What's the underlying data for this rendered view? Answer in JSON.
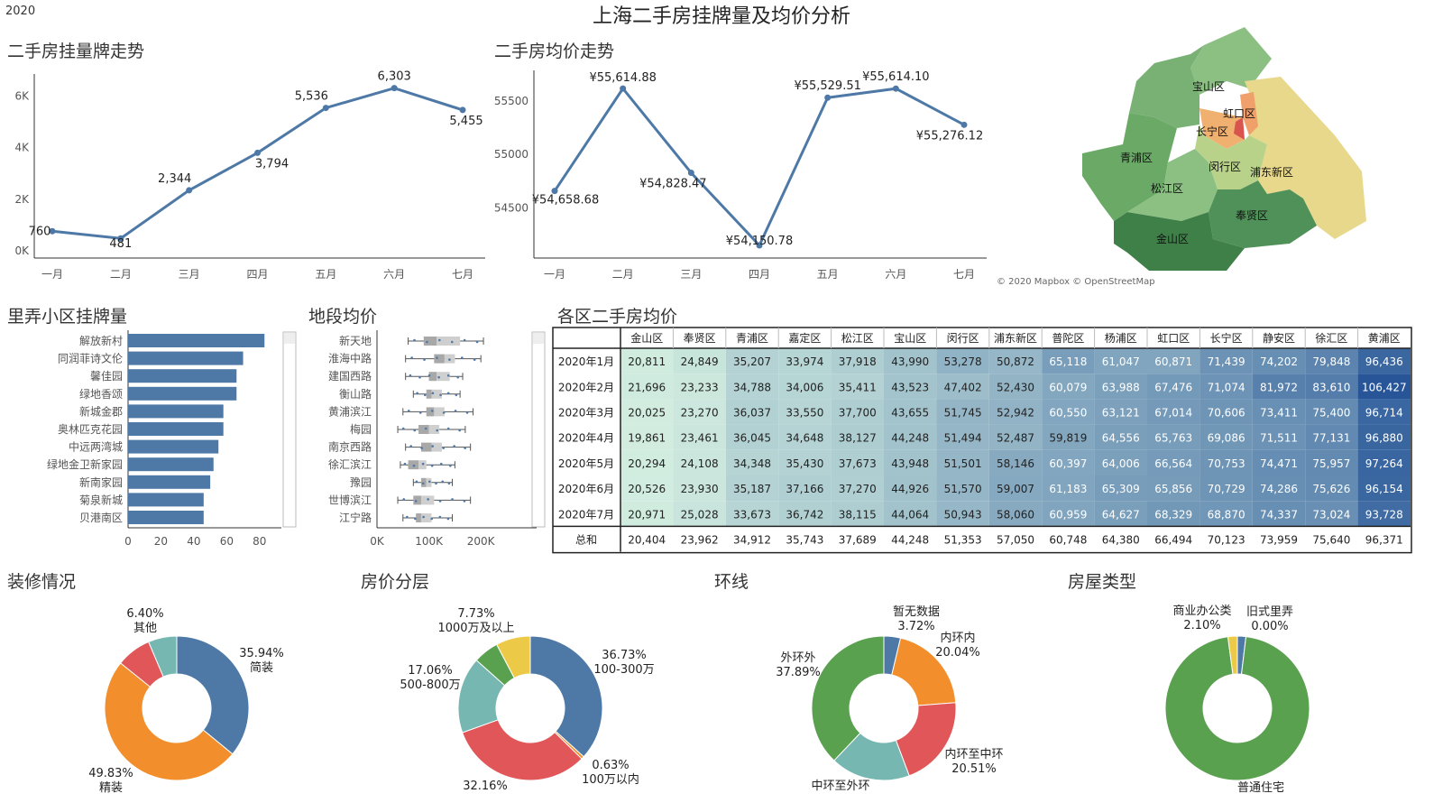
{
  "header": {
    "year": "2020",
    "title": "上海二手房挂牌量及均价分析"
  },
  "listing_trend": {
    "title": "二手房挂量牌走势",
    "chart_data": {
      "type": "line",
      "categories": [
        "一月",
        "二月",
        "三月",
        "四月",
        "五月",
        "六月",
        "七月"
      ],
      "values": [
        760,
        481,
        2344,
        3794,
        5536,
        6303,
        5455
      ],
      "labels": [
        "760",
        "481",
        "2,344",
        "3,794",
        "5,536",
        "6,303",
        "5,455"
      ],
      "yticks": [
        "0K",
        "2K",
        "4K",
        "6K"
      ],
      "ylim": [
        0,
        6500
      ]
    }
  },
  "price_trend": {
    "title": "二手房均价走势",
    "chart_data": {
      "type": "line",
      "categories": [
        "一月",
        "二月",
        "三月",
        "四月",
        "五月",
        "六月",
        "七月"
      ],
      "values": [
        54658.68,
        55614.88,
        54828.47,
        54150.78,
        55529.51,
        55614.1,
        55276.12
      ],
      "labels": [
        "¥54,658.68",
        "¥55,614.88",
        "¥54,828.47",
        "¥54,150.78",
        "¥55,529.51",
        "¥55,614.10",
        "¥55,276.12"
      ],
      "yticks": [
        "54500",
        "55000",
        "55500"
      ],
      "ylim": [
        54100,
        55700
      ]
    }
  },
  "map": {
    "credit": "© 2020 Mapbox © OpenStreetMap",
    "districts": [
      "宝山区",
      "虹口区",
      "长宁区",
      "青浦区",
      "闵行区",
      "浦东新区",
      "松江区",
      "奉贤区",
      "金山区"
    ]
  },
  "lane_listing": {
    "title": "里弄小区挂牌量",
    "chart_data": {
      "type": "bar",
      "categories": [
        "解放新村",
        "同润菲诗文伦",
        "馨佳园",
        "绿地香颂",
        "新城金郡",
        "奥林匹克花园",
        "中远两湾城",
        "绿地金卫新家园",
        "新南家园",
        "菊泉新城",
        "贝港南区"
      ],
      "values": [
        83,
        70,
        66,
        66,
        58,
        58,
        55,
        52,
        50,
        46,
        46
      ],
      "xticks": [
        "0",
        "20",
        "40",
        "60",
        "80"
      ],
      "xlim": [
        0,
        90
      ]
    }
  },
  "segment_price": {
    "title": "地段均价",
    "chart_data": {
      "type": "box",
      "categories": [
        "新天地",
        "淮海中路",
        "建国西路",
        "衡山路",
        "黄浦滨江",
        "梅园",
        "南京西路",
        "徐汇滨江",
        "豫园",
        "世博滨江",
        "江宁路"
      ],
      "xticks": [
        "0K",
        "100K",
        "200K"
      ],
      "xlim": [
        0,
        290000
      ]
    }
  },
  "district_table": {
    "title": "各区二手房均价",
    "columns": [
      "金山区",
      "奉贤区",
      "青浦区",
      "嘉定区",
      "松江区",
      "宝山区",
      "闵行区",
      "浦东新区",
      "普陀区",
      "杨浦区",
      "虹口区",
      "长宁区",
      "静安区",
      "徐汇区",
      "黄浦区"
    ],
    "rows": [
      {
        "label": "2020年1月",
        "cells": [
          "20,811",
          "24,849",
          "35,207",
          "33,974",
          "37,918",
          "43,990",
          "53,278",
          "50,872",
          "65,118",
          "61,047",
          "60,871",
          "71,439",
          "74,202",
          "79,848",
          "96,436"
        ]
      },
      {
        "label": "2020年2月",
        "cells": [
          "21,696",
          "23,233",
          "34,788",
          "34,006",
          "35,411",
          "43,523",
          "47,402",
          "52,430",
          "60,079",
          "63,988",
          "67,476",
          "71,074",
          "81,972",
          "83,610",
          "106,427"
        ]
      },
      {
        "label": "2020年3月",
        "cells": [
          "20,025",
          "23,270",
          "36,037",
          "33,550",
          "37,700",
          "43,655",
          "51,745",
          "52,942",
          "60,550",
          "63,121",
          "67,014",
          "70,606",
          "73,411",
          "75,400",
          "96,714"
        ]
      },
      {
        "label": "2020年4月",
        "cells": [
          "19,861",
          "23,461",
          "36,045",
          "34,648",
          "38,127",
          "44,248",
          "51,494",
          "52,487",
          "59,819",
          "64,556",
          "65,763",
          "69,086",
          "71,511",
          "77,131",
          "96,880"
        ]
      },
      {
        "label": "2020年5月",
        "cells": [
          "20,294",
          "24,108",
          "34,348",
          "35,430",
          "37,673",
          "43,948",
          "51,501",
          "58,146",
          "60,397",
          "64,006",
          "66,564",
          "70,753",
          "74,471",
          "75,957",
          "97,264"
        ]
      },
      {
        "label": "2020年6月",
        "cells": [
          "20,526",
          "23,930",
          "35,187",
          "37,166",
          "37,270",
          "44,926",
          "51,570",
          "59,007",
          "61,183",
          "65,309",
          "65,856",
          "70,729",
          "74,286",
          "75,626",
          "96,154"
        ]
      },
      {
        "label": "2020年7月",
        "cells": [
          "20,971",
          "25,028",
          "33,673",
          "36,742",
          "38,115",
          "44,064",
          "50,943",
          "58,060",
          "60,959",
          "64,627",
          "68,329",
          "68,870",
          "74,337",
          "73,024",
          "93,728"
        ]
      }
    ],
    "total": {
      "label": "总和",
      "cells": [
        "20,404",
        "23,962",
        "34,912",
        "35,743",
        "37,689",
        "44,248",
        "51,353",
        "57,050",
        "60,748",
        "64,380",
        "66,494",
        "70,123",
        "73,959",
        "75,640",
        "96,371"
      ]
    }
  },
  "decoration": {
    "title": "装修情况",
    "chart_data": {
      "type": "pie",
      "slices": [
        {
          "name": "简装",
          "pct": "35.94%",
          "value": 35.94,
          "color": "#4e79a7"
        },
        {
          "name": "精装",
          "pct": "49.83%",
          "value": 49.83,
          "color": "#f28e2b"
        },
        {
          "name": "",
          "pct": "",
          "value": 7.83,
          "color": "#e15759"
        },
        {
          "name": "其他",
          "pct": "6.40%",
          "value": 6.4,
          "color": "#76b7b2"
        }
      ]
    }
  },
  "price_tier": {
    "title": "房价分层",
    "chart_data": {
      "type": "pie",
      "slices": [
        {
          "name": "100-300万",
          "pct": "36.73%",
          "value": 36.73,
          "color": "#4e79a7"
        },
        {
          "name": "100万以内",
          "pct": "0.63%",
          "value": 0.63,
          "color": "#f28e2b"
        },
        {
          "name": "",
          "pct": "32.16%",
          "value": 32.16,
          "color": "#e15759"
        },
        {
          "name": "500-800万",
          "pct": "17.06%",
          "value": 17.06,
          "color": "#76b7b2"
        },
        {
          "name": "",
          "pct": "",
          "value": 5.69,
          "color": "#59a14f"
        },
        {
          "name": "1000万及以上",
          "pct": "7.73%",
          "value": 7.73,
          "color": "#edc948"
        }
      ]
    }
  },
  "ring_road": {
    "title": "环线",
    "chart_data": {
      "type": "pie",
      "slices": [
        {
          "name": "暂无数据",
          "pct": "3.72%",
          "value": 3.72,
          "color": "#4e79a7"
        },
        {
          "name": "内环内",
          "pct": "20.04%",
          "value": 20.04,
          "color": "#f28e2b"
        },
        {
          "name": "内环至中环",
          "pct": "20.51%",
          "value": 20.51,
          "color": "#e15759"
        },
        {
          "name": "中环至外环",
          "pct": "",
          "value": 17.84,
          "color": "#76b7b2"
        },
        {
          "name": "外环外",
          "pct": "37.89%",
          "value": 37.89,
          "color": "#59a14f"
        }
      ]
    }
  },
  "house_type": {
    "title": "房屋类型",
    "chart_data": {
      "type": "pie",
      "slices": [
        {
          "name": "旧式里弄",
          "pct": "0.00%",
          "value": 0.0,
          "color": "#4e79a7"
        },
        {
          "name": "",
          "pct": "",
          "value": 1.9,
          "color": "#4e79a7"
        },
        {
          "name": "普通住宅",
          "pct": "",
          "value": 96.0,
          "color": "#59a14f"
        },
        {
          "name": "商业办公类",
          "pct": "2.10%",
          "value": 2.1,
          "color": "#edc948"
        }
      ]
    }
  }
}
